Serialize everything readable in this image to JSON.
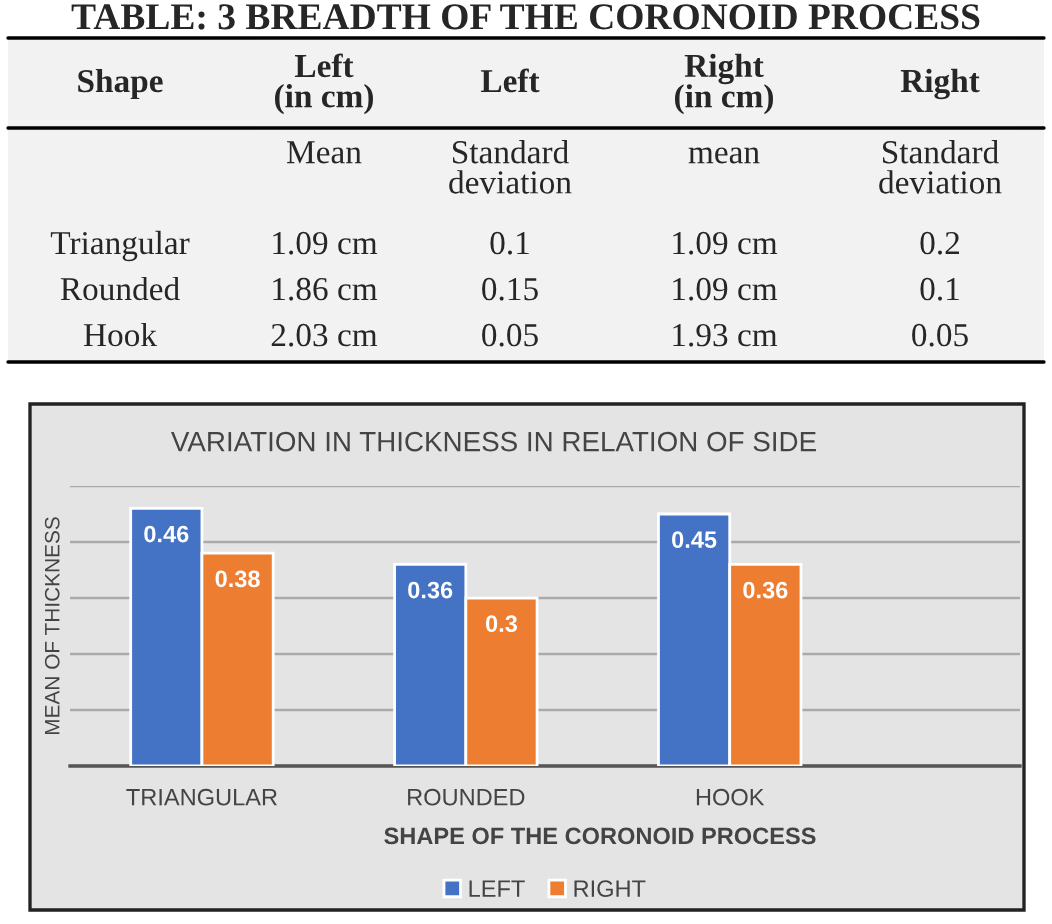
{
  "chart_data": [
    {
      "type": "other",
      "title": "TABLE: 3 BREADTH OF THE CORONOID PROCESS",
      "annotations": [
        "Shape",
        "Left\n(in cm)",
        "Left",
        "Right\n(in cm)",
        "Right",
        "Mean",
        "Standard\ndeviation",
        "mean",
        "Standard\ndeviation",
        "Triangular",
        "1.09 cm",
        "0.1",
        "1.09 cm",
        "0.2",
        "Rounded",
        "1.86 cm",
        "0.15",
        "1.09 cm",
        "0.1",
        "Hook",
        "2.03 cm",
        "0.05",
        "1.93 cm",
        "0.05"
      ]
    },
    {
      "type": "bar",
      "title": "VARIATION IN THICKNESS IN RELATION OF SIDE",
      "xlabel": "SHAPE OF THE CORONOID PROCESS",
      "ylabel": "MEAN OF THICKNESS",
      "categories": [
        "TRIANGULAR",
        "ROUNDED",
        "HOOK"
      ],
      "series": [
        {
          "name": "LEFT",
          "color": "#4472c4",
          "values": [
            0.46,
            0.36,
            0.45
          ]
        },
        {
          "name": "RIGHT",
          "color": "#ed7d31",
          "values": [
            0.38,
            0.3,
            0.36
          ]
        }
      ],
      "ylim": [
        0,
        0.5
      ],
      "yticks": [
        {
          "value": 0,
          "label": null
        },
        {
          "value": 0.1,
          "label": null
        },
        {
          "value": 0.2,
          "label": null
        },
        {
          "value": 0.3,
          "label": null
        },
        {
          "value": 0.4,
          "label": null
        },
        {
          "value": 0.5,
          "label": null
        }
      ],
      "tick_labels": "x",
      "grid": "y",
      "legend": "bottom",
      "data_labels": true
    }
  ]
}
